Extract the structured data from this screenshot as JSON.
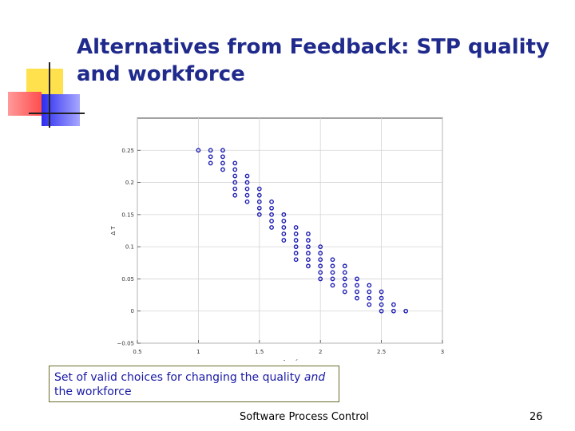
{
  "slide": {
    "title_line1": "Alternatives from Feedback: STP quality",
    "title_line2": "and workforce",
    "caption_part1": "Set of valid choices for changing the quality ",
    "caption_italic": "and",
    "caption_part2": " the workforce",
    "footer": "Software Process Control",
    "page_number": "26"
  },
  "colors": {
    "title": "#1f2a8c",
    "caption_text": "#1a1aa6",
    "marker": "#1f1fb4",
    "deco_yellow": "#ffe14d",
    "deco_red": "#ff5a5a",
    "deco_blue": "#3a3af0"
  },
  "chart_data": {
    "type": "scatter",
    "title": "",
    "xlabel": "Δ w_f",
    "ylabel": "Δ T",
    "xlim": [
      0.5,
      3
    ],
    "ylim": [
      -0.05,
      0.3
    ],
    "xticks": [
      "0.5",
      "1",
      "1.5",
      "2",
      "2.5",
      "3"
    ],
    "yticks": [
      "−0.05",
      "0",
      "0.05",
      "0.1",
      "0.15",
      "0.2",
      "0.25"
    ],
    "grid": true,
    "marker": "circle",
    "series": [
      {
        "points": [
          [
            1.0,
            0.25
          ],
          [
            1.1,
            0.25
          ],
          [
            1.1,
            0.24
          ],
          [
            1.1,
            0.23
          ],
          [
            1.2,
            0.25
          ],
          [
            1.2,
            0.24
          ],
          [
            1.2,
            0.23
          ],
          [
            1.2,
            0.22
          ],
          [
            1.3,
            0.23
          ],
          [
            1.3,
            0.22
          ],
          [
            1.3,
            0.21
          ],
          [
            1.3,
            0.2
          ],
          [
            1.3,
            0.19
          ],
          [
            1.3,
            0.18
          ],
          [
            1.4,
            0.21
          ],
          [
            1.4,
            0.2
          ],
          [
            1.4,
            0.19
          ],
          [
            1.4,
            0.18
          ],
          [
            1.4,
            0.17
          ],
          [
            1.5,
            0.19
          ],
          [
            1.5,
            0.18
          ],
          [
            1.5,
            0.17
          ],
          [
            1.5,
            0.16
          ],
          [
            1.5,
            0.15
          ],
          [
            1.6,
            0.17
          ],
          [
            1.6,
            0.16
          ],
          [
            1.6,
            0.15
          ],
          [
            1.6,
            0.14
          ],
          [
            1.6,
            0.13
          ],
          [
            1.7,
            0.15
          ],
          [
            1.7,
            0.14
          ],
          [
            1.7,
            0.13
          ],
          [
            1.7,
            0.12
          ],
          [
            1.7,
            0.11
          ],
          [
            1.8,
            0.13
          ],
          [
            1.8,
            0.12
          ],
          [
            1.8,
            0.11
          ],
          [
            1.8,
            0.1
          ],
          [
            1.8,
            0.09
          ],
          [
            1.8,
            0.08
          ],
          [
            1.9,
            0.12
          ],
          [
            1.9,
            0.11
          ],
          [
            1.9,
            0.1
          ],
          [
            1.9,
            0.09
          ],
          [
            1.9,
            0.08
          ],
          [
            1.9,
            0.07
          ],
          [
            2.0,
            0.1
          ],
          [
            2.0,
            0.09
          ],
          [
            2.0,
            0.08
          ],
          [
            2.0,
            0.07
          ],
          [
            2.0,
            0.06
          ],
          [
            2.0,
            0.05
          ],
          [
            2.1,
            0.08
          ],
          [
            2.1,
            0.07
          ],
          [
            2.1,
            0.06
          ],
          [
            2.1,
            0.05
          ],
          [
            2.1,
            0.04
          ],
          [
            2.2,
            0.07
          ],
          [
            2.2,
            0.06
          ],
          [
            2.2,
            0.05
          ],
          [
            2.2,
            0.04
          ],
          [
            2.2,
            0.03
          ],
          [
            2.3,
            0.05
          ],
          [
            2.3,
            0.04
          ],
          [
            2.3,
            0.03
          ],
          [
            2.3,
            0.02
          ],
          [
            2.4,
            0.04
          ],
          [
            2.4,
            0.03
          ],
          [
            2.4,
            0.02
          ],
          [
            2.4,
            0.01
          ],
          [
            2.5,
            0.03
          ],
          [
            2.5,
            0.02
          ],
          [
            2.5,
            0.01
          ],
          [
            2.5,
            0.0
          ],
          [
            2.6,
            0.01
          ],
          [
            2.6,
            0.0
          ],
          [
            2.7,
            0.0
          ]
        ]
      }
    ]
  }
}
